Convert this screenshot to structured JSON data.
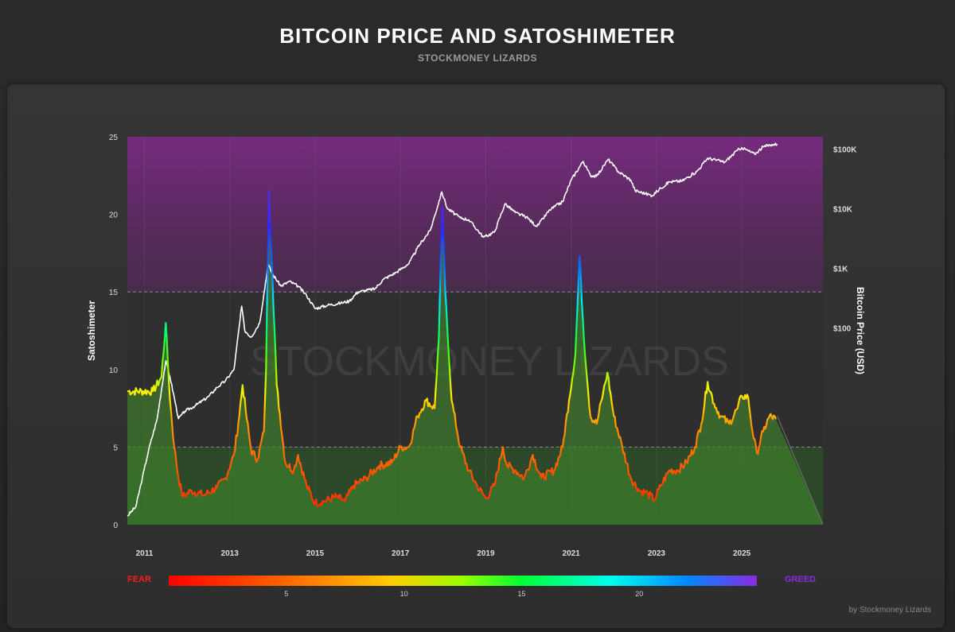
{
  "header": {
    "title": "BITCOIN PRICE AND SATOSHIMETER",
    "subtitle": "STOCKMONEY LIZARDS"
  },
  "credit": "by Stockmoney Lizards",
  "watermark": "STOCKMONEY LIZARDS",
  "colors": {
    "greed_zone": "#7a2a82",
    "fear_zone": "#2e6e24",
    "price_line": "#ffffff",
    "fear_label": "#ff1a1a",
    "greed_label": "#8a2be2"
  },
  "chart_data": {
    "type": "line",
    "title": "BITCOIN PRICE AND SATOSHIMETER",
    "x_range": [
      2010.6,
      2026.9
    ],
    "x_ticks": [
      "2011",
      "2013",
      "2015",
      "2017",
      "2019",
      "2021",
      "2023",
      "2025"
    ],
    "y_left": {
      "label": "Satoshimeter",
      "range": [
        0,
        25
      ],
      "ticks": [
        "0",
        "5",
        "10",
        "15",
        "20",
        "25"
      ],
      "thresholds": [
        5,
        15
      ]
    },
    "y_right": {
      "label": "Bitcoin Price (USD)",
      "scale": "log",
      "range": [
        0.05,
        160000
      ],
      "ticks": [
        {
          "value": 100000,
          "label": "$100K"
        },
        {
          "value": 10000,
          "label": "$10K"
        },
        {
          "value": 1000,
          "label": "$1K"
        },
        {
          "value": 100,
          "label": "$100"
        }
      ]
    },
    "zones": [
      {
        "name": "Greed",
        "from": 15,
        "to": 25
      },
      {
        "name": "Fear",
        "from": 0,
        "to": 5
      }
    ],
    "series": [
      {
        "name": "Satoshimeter",
        "axis": "left",
        "points": [
          [
            2010.6,
            8.6
          ],
          [
            2011.2,
            8.6
          ],
          [
            2011.4,
            9.5
          ],
          [
            2011.5,
            13
          ],
          [
            2011.6,
            8
          ],
          [
            2011.7,
            5
          ],
          [
            2011.8,
            3
          ],
          [
            2011.9,
            1.8
          ],
          [
            2012.1,
            2.2
          ],
          [
            2012.4,
            1.9
          ],
          [
            2012.7,
            2.4
          ],
          [
            2012.9,
            3
          ],
          [
            2013.1,
            4.5
          ],
          [
            2013.2,
            6.5
          ],
          [
            2013.3,
            9
          ],
          [
            2013.4,
            6.8
          ],
          [
            2013.5,
            4.8
          ],
          [
            2013.65,
            4.2
          ],
          [
            2013.8,
            6
          ],
          [
            2013.85,
            10
          ],
          [
            2013.92,
            21.5
          ],
          [
            2014.0,
            16
          ],
          [
            2014.1,
            9
          ],
          [
            2014.3,
            4
          ],
          [
            2014.5,
            3.5
          ],
          [
            2014.6,
            4.5
          ],
          [
            2014.8,
            2.5
          ],
          [
            2015.0,
            1.4
          ],
          [
            2015.2,
            1.5
          ],
          [
            2015.5,
            1.8
          ],
          [
            2015.7,
            1.5
          ],
          [
            2015.9,
            2.5
          ],
          [
            2016.2,
            3
          ],
          [
            2016.5,
            3.8
          ],
          [
            2016.8,
            4
          ],
          [
            2017.0,
            5
          ],
          [
            2017.2,
            5
          ],
          [
            2017.4,
            7
          ],
          [
            2017.6,
            8
          ],
          [
            2017.8,
            7.5
          ],
          [
            2017.9,
            12
          ],
          [
            2017.98,
            20.5
          ],
          [
            2018.05,
            15
          ],
          [
            2018.2,
            8
          ],
          [
            2018.4,
            5
          ],
          [
            2018.6,
            3.5
          ],
          [
            2018.8,
            2.5
          ],
          [
            2019.0,
            1.7
          ],
          [
            2019.2,
            2.5
          ],
          [
            2019.4,
            5
          ],
          [
            2019.5,
            3.8
          ],
          [
            2019.7,
            3.5
          ],
          [
            2019.9,
            3
          ],
          [
            2020.1,
            4.5
          ],
          [
            2020.3,
            3
          ],
          [
            2020.6,
            3.5
          ],
          [
            2020.8,
            5
          ],
          [
            2020.95,
            8
          ],
          [
            2021.1,
            11
          ],
          [
            2021.2,
            17.3
          ],
          [
            2021.3,
            12
          ],
          [
            2021.45,
            7
          ],
          [
            2021.6,
            6.5
          ],
          [
            2021.75,
            8.5
          ],
          [
            2021.85,
            9.8
          ],
          [
            2022.0,
            7
          ],
          [
            2022.2,
            5
          ],
          [
            2022.4,
            3
          ],
          [
            2022.6,
            2.2
          ],
          [
            2022.8,
            2
          ],
          [
            2022.95,
            1.6
          ],
          [
            2023.1,
            2.5
          ],
          [
            2023.3,
            3.5
          ],
          [
            2023.5,
            3.5
          ],
          [
            2023.7,
            4
          ],
          [
            2023.9,
            5
          ],
          [
            2024.05,
            6.5
          ],
          [
            2024.2,
            9.2
          ],
          [
            2024.35,
            7.8
          ],
          [
            2024.5,
            7
          ],
          [
            2024.7,
            6.5
          ],
          [
            2024.9,
            7.5
          ],
          [
            2025.0,
            8.3
          ],
          [
            2025.15,
            8.2
          ],
          [
            2025.25,
            6
          ],
          [
            2025.35,
            4.6
          ],
          [
            2025.5,
            6
          ],
          [
            2025.65,
            7
          ],
          [
            2025.8,
            6.8
          ]
        ]
      },
      {
        "name": "Bitcoin Price",
        "axis": "right",
        "points": [
          [
            2010.6,
            0.07
          ],
          [
            2010.8,
            0.1
          ],
          [
            2010.95,
            0.3
          ],
          [
            2011.1,
            0.9
          ],
          [
            2011.3,
            3
          ],
          [
            2011.5,
            28
          ],
          [
            2011.6,
            15
          ],
          [
            2011.8,
            3
          ],
          [
            2011.95,
            4
          ],
          [
            2012.2,
            5
          ],
          [
            2012.5,
            7
          ],
          [
            2012.7,
            10
          ],
          [
            2012.9,
            13
          ],
          [
            2013.1,
            20
          ],
          [
            2013.28,
            230
          ],
          [
            2013.35,
            90
          ],
          [
            2013.5,
            70
          ],
          [
            2013.7,
            120
          ],
          [
            2013.9,
            1150
          ],
          [
            2014.0,
            800
          ],
          [
            2014.2,
            500
          ],
          [
            2014.4,
            600
          ],
          [
            2014.6,
            500
          ],
          [
            2014.8,
            350
          ],
          [
            2015.0,
            210
          ],
          [
            2015.3,
            240
          ],
          [
            2015.6,
            260
          ],
          [
            2015.8,
            280
          ],
          [
            2016.0,
            400
          ],
          [
            2016.4,
            450
          ],
          [
            2016.6,
            650
          ],
          [
            2016.9,
            850
          ],
          [
            2017.2,
            1200
          ],
          [
            2017.45,
            2500
          ],
          [
            2017.7,
            4300
          ],
          [
            2017.97,
            19000
          ],
          [
            2018.1,
            10000
          ],
          [
            2018.4,
            7000
          ],
          [
            2018.6,
            6500
          ],
          [
            2018.95,
            3300
          ],
          [
            2019.2,
            4000
          ],
          [
            2019.45,
            12000
          ],
          [
            2019.7,
            8500
          ],
          [
            2019.95,
            7200
          ],
          [
            2020.2,
            5000
          ],
          [
            2020.5,
            9500
          ],
          [
            2020.8,
            13000
          ],
          [
            2021.0,
            30000
          ],
          [
            2021.28,
            62000
          ],
          [
            2021.45,
            36000
          ],
          [
            2021.6,
            35000
          ],
          [
            2021.87,
            67000
          ],
          [
            2022.1,
            42000
          ],
          [
            2022.4,
            30000
          ],
          [
            2022.5,
            20000
          ],
          [
            2022.9,
            16500
          ],
          [
            2023.1,
            22000
          ],
          [
            2023.3,
            28000
          ],
          [
            2023.6,
            29000
          ],
          [
            2023.95,
            42000
          ],
          [
            2024.2,
            70000
          ],
          [
            2024.6,
            60000
          ],
          [
            2024.9,
            95000
          ],
          [
            2025.0,
            105000
          ],
          [
            2025.3,
            82000
          ],
          [
            2025.5,
            108000
          ],
          [
            2025.7,
            118000
          ],
          [
            2025.83,
            120000
          ]
        ]
      }
    ],
    "forecast": {
      "from": [
        2025.83,
        7
      ],
      "to": [
        2026.9,
        0
      ]
    },
    "colorbar": {
      "left_label": "FEAR",
      "right_label": "GREED",
      "range": [
        0,
        25
      ],
      "ticks": [
        "5",
        "10",
        "15",
        "20"
      ]
    }
  }
}
